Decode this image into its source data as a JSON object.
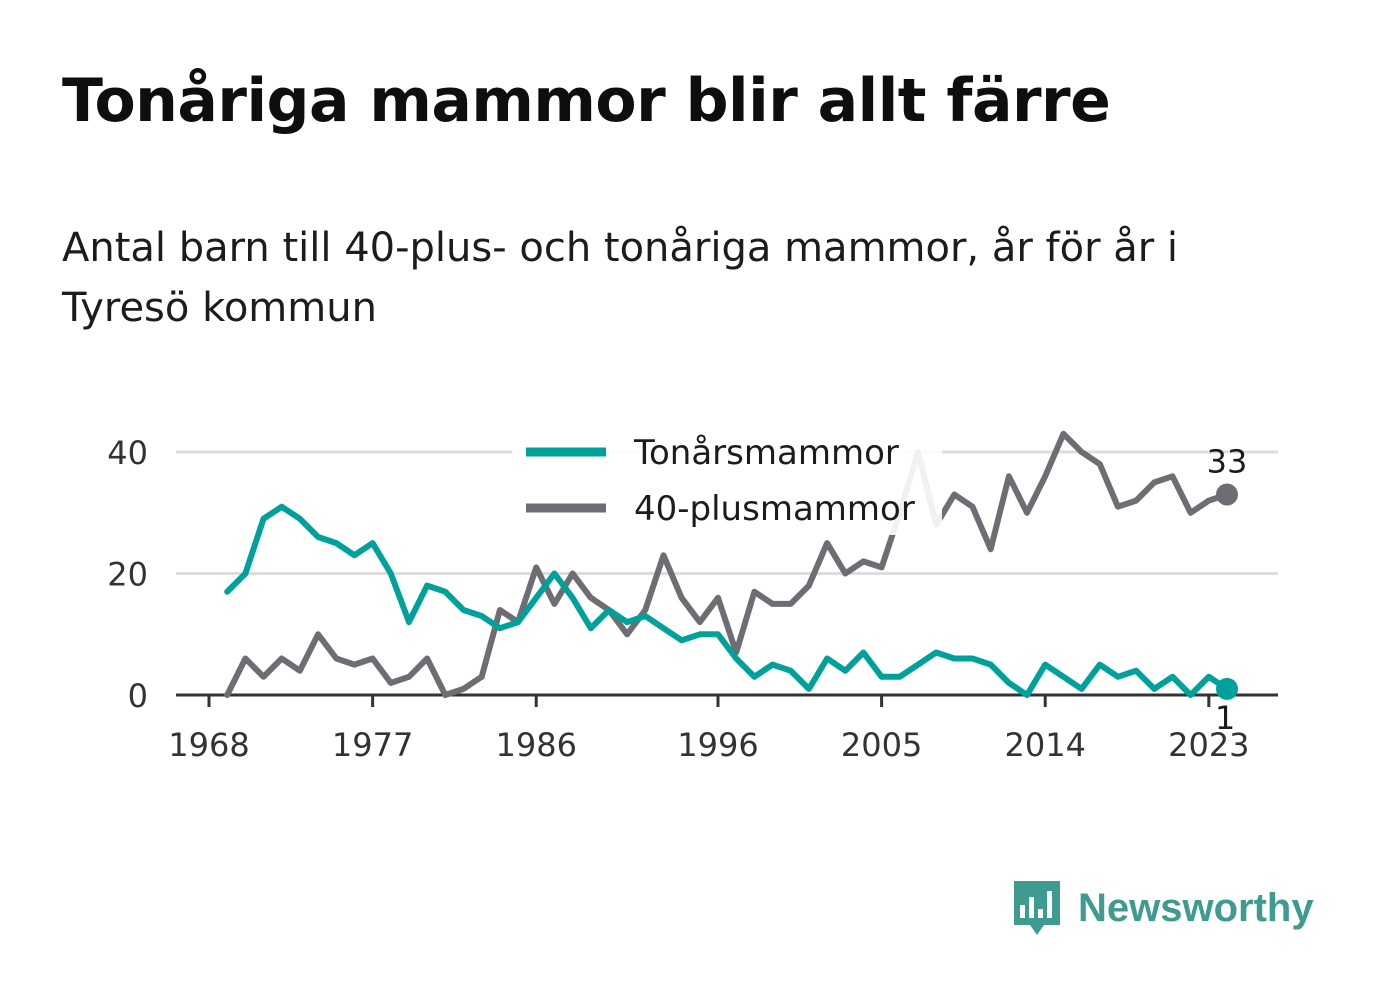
{
  "title": "Tonåriga mammor blir allt färre",
  "subtitle": "Antal barn till 40-plus- och tonåriga mammor, år för år i Tyresö kommun",
  "brand": {
    "name": "Newsworthy"
  },
  "chart_data": {
    "type": "line",
    "x_ticks": [
      1968,
      1977,
      1986,
      1996,
      2005,
      2014,
      2023
    ],
    "y_ticks": [
      0,
      20,
      40
    ],
    "xlim": [
      1968,
      2027
    ],
    "ylim": [
      0,
      40
    ],
    "grid": true,
    "legend_position": "top-center",
    "colors": {
      "teen": "#00a19a",
      "forty_plus": "#6e6d73",
      "grid": "#dddddd",
      "axis": "#333333"
    },
    "x": [
      1969,
      1970,
      1971,
      1972,
      1973,
      1974,
      1975,
      1976,
      1977,
      1978,
      1979,
      1980,
      1981,
      1982,
      1983,
      1984,
      1985,
      1986,
      1987,
      1988,
      1989,
      1990,
      1991,
      1992,
      1993,
      1994,
      1995,
      1996,
      1997,
      1998,
      1999,
      2000,
      2001,
      2002,
      2003,
      2004,
      2005,
      2006,
      2007,
      2008,
      2009,
      2010,
      2011,
      2012,
      2013,
      2014,
      2015,
      2016,
      2017,
      2018,
      2019,
      2020,
      2021,
      2022,
      2023,
      2024
    ],
    "series": [
      {
        "key": "teen",
        "name": "Tonårsmammor",
        "end_label": "1",
        "values": [
          17,
          20,
          29,
          31,
          29,
          26,
          25,
          23,
          25,
          20,
          12,
          18,
          17,
          14,
          13,
          11,
          12,
          16,
          20,
          16,
          11,
          14,
          12,
          13,
          11,
          9,
          10,
          10,
          6,
          3,
          5,
          4,
          1,
          6,
          4,
          7,
          3,
          3,
          5,
          7,
          6,
          6,
          5,
          2,
          0,
          5,
          3,
          1,
          5,
          3,
          4,
          1,
          3,
          0,
          3,
          1
        ]
      },
      {
        "key": "forty_plus",
        "name": "40-plusmammor",
        "end_label": "33",
        "values": [
          0,
          6,
          3,
          6,
          4,
          10,
          6,
          5,
          6,
          2,
          3,
          6,
          0,
          1,
          3,
          14,
          12,
          21,
          15,
          20,
          16,
          14,
          10,
          14,
          23,
          16,
          12,
          16,
          7,
          17,
          15,
          15,
          18,
          25,
          20,
          22,
          21,
          30,
          40,
          28,
          33,
          31,
          24,
          36,
          30,
          36,
          43,
          40,
          38,
          31,
          32,
          35,
          36,
          30,
          32,
          33
        ]
      }
    ]
  }
}
